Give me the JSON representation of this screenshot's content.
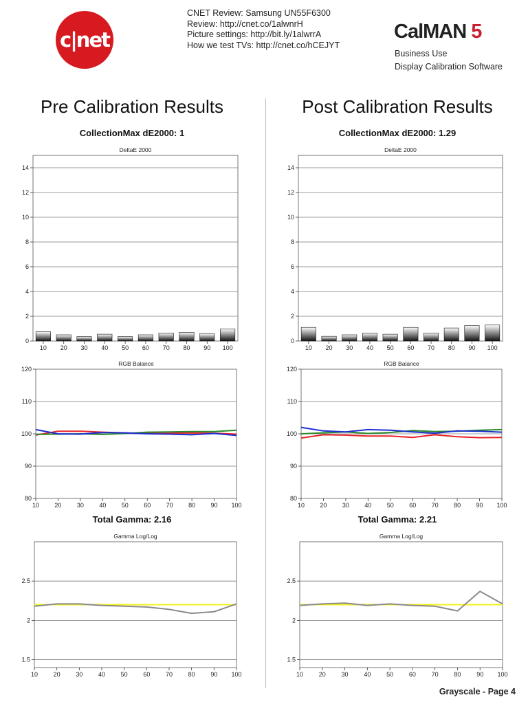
{
  "header": {
    "logo_text": "c|net",
    "review_lines": [
      "CNET Review: Samsung UN55F6300",
      "Review: http://cnet.co/1alwnrH",
      "Picture settings: http://bit.ly/1alwrrA",
      "How we test TVs: http://cnet.co/hCEJYT"
    ],
    "calman_brand": "CalMAN",
    "calman_version": "5",
    "calman_sub1": "Business Use",
    "calman_sub2": "Display Calibration Software"
  },
  "pre": {
    "title": "Pre Calibration Results",
    "de_stat": "CollectionMax dE2000: 1",
    "gamma_stat": "Total Gamma: 2.16"
  },
  "post": {
    "title": "Post Calibration Results",
    "de_stat": "CollectionMax dE2000: 1.29",
    "gamma_stat": "Total Gamma: 2.21"
  },
  "footer": {
    "page_label": "Grayscale - Page 4"
  },
  "colors": {
    "red": "#e8232a",
    "green": "#2a8a2a",
    "blue": "#1f2fd0",
    "gamma": "#8a8a8a",
    "target": "#f2f21a",
    "grid": "#7a7a7a"
  },
  "chart_data": [
    {
      "id": "pre-deltae",
      "type": "bar",
      "title": "DeltaE 2000",
      "categories": [
        "10",
        "20",
        "30",
        "40",
        "50",
        "60",
        "70",
        "80",
        "90",
        "100"
      ],
      "values": [
        0.75,
        0.5,
        0.35,
        0.55,
        0.35,
        0.5,
        0.65,
        0.7,
        0.6,
        0.98
      ],
      "ylim": [
        0,
        15
      ],
      "yticks": [
        0,
        2,
        4,
        6,
        8,
        10,
        12,
        14
      ]
    },
    {
      "id": "post-deltae",
      "type": "bar",
      "title": "DeltaE 2000",
      "categories": [
        "10",
        "20",
        "30",
        "40",
        "50",
        "60",
        "70",
        "80",
        "90",
        "100"
      ],
      "values": [
        1.1,
        0.38,
        0.5,
        0.65,
        0.55,
        1.1,
        0.65,
        1.05,
        1.25,
        1.29
      ],
      "ylim": [
        0,
        15
      ],
      "yticks": [
        0,
        2,
        4,
        6,
        8,
        10,
        12,
        14
      ]
    },
    {
      "id": "pre-rgb",
      "type": "line",
      "title": "RGB Balance",
      "x": [
        10,
        20,
        30,
        40,
        50,
        60,
        70,
        80,
        90,
        100
      ],
      "series": [
        {
          "color": "red",
          "values": [
            99.6,
            100.8,
            100.8,
            100.5,
            100.3,
            100.1,
            100.2,
            100.3,
            100.2,
            99.9
          ]
        },
        {
          "color": "green",
          "values": [
            99.8,
            99.9,
            100.0,
            99.8,
            100.1,
            100.5,
            100.6,
            100.7,
            100.7,
            101.1
          ]
        },
        {
          "color": "blue",
          "values": [
            101.3,
            100.0,
            99.9,
            100.4,
            100.3,
            100.0,
            99.9,
            99.7,
            100.1,
            99.5
          ]
        }
      ],
      "ylim": [
        80,
        120
      ],
      "yticks": [
        80,
        90,
        100,
        110,
        120
      ]
    },
    {
      "id": "post-rgb",
      "type": "line",
      "title": "RGB Balance",
      "x": [
        10,
        20,
        30,
        40,
        50,
        60,
        70,
        80,
        90,
        100
      ],
      "series": [
        {
          "color": "red",
          "values": [
            98.7,
            99.7,
            99.6,
            99.3,
            99.3,
            98.9,
            99.7,
            99.1,
            98.8,
            98.9
          ]
        },
        {
          "color": "green",
          "values": [
            100.0,
            100.3,
            100.6,
            100.1,
            100.4,
            101.0,
            100.7,
            100.8,
            101.1,
            101.3
          ]
        },
        {
          "color": "blue",
          "values": [
            102.0,
            100.9,
            100.6,
            101.3,
            101.1,
            100.6,
            100.2,
            100.9,
            100.8,
            100.5
          ]
        }
      ],
      "ylim": [
        80,
        120
      ],
      "yticks": [
        80,
        90,
        100,
        110,
        120
      ]
    },
    {
      "id": "pre-gamma",
      "type": "line",
      "title": "Gamma Log/Log",
      "x": [
        10,
        20,
        30,
        40,
        50,
        60,
        70,
        80,
        90,
        100
      ],
      "series": [
        {
          "color": "gamma",
          "values": [
            2.18,
            2.21,
            2.21,
            2.19,
            2.18,
            2.17,
            2.14,
            2.09,
            2.11,
            2.21
          ]
        },
        {
          "color": "target",
          "values": [
            2.2,
            2.2,
            2.2,
            2.2,
            2.2,
            2.2,
            2.2,
            2.2,
            2.2,
            2.2
          ]
        }
      ],
      "ylim": [
        1.4,
        3.0
      ],
      "yticks": [
        1.5,
        2,
        2.5
      ],
      "ytick_labels": [
        "1.5",
        "2",
        "2.5"
      ]
    },
    {
      "id": "post-gamma",
      "type": "line",
      "title": "Gamma Log/Log",
      "x": [
        10,
        20,
        30,
        40,
        50,
        60,
        70,
        80,
        90,
        100
      ],
      "series": [
        {
          "color": "gamma",
          "values": [
            2.19,
            2.21,
            2.22,
            2.19,
            2.21,
            2.19,
            2.18,
            2.12,
            2.37,
            2.21
          ]
        },
        {
          "color": "target",
          "values": [
            2.2,
            2.2,
            2.2,
            2.2,
            2.2,
            2.2,
            2.2,
            2.2,
            2.2,
            2.2
          ]
        }
      ],
      "ylim": [
        1.4,
        3.0
      ],
      "yticks": [
        1.5,
        2,
        2.5
      ],
      "ytick_labels": [
        "1.5",
        "2",
        "2.5"
      ]
    }
  ]
}
